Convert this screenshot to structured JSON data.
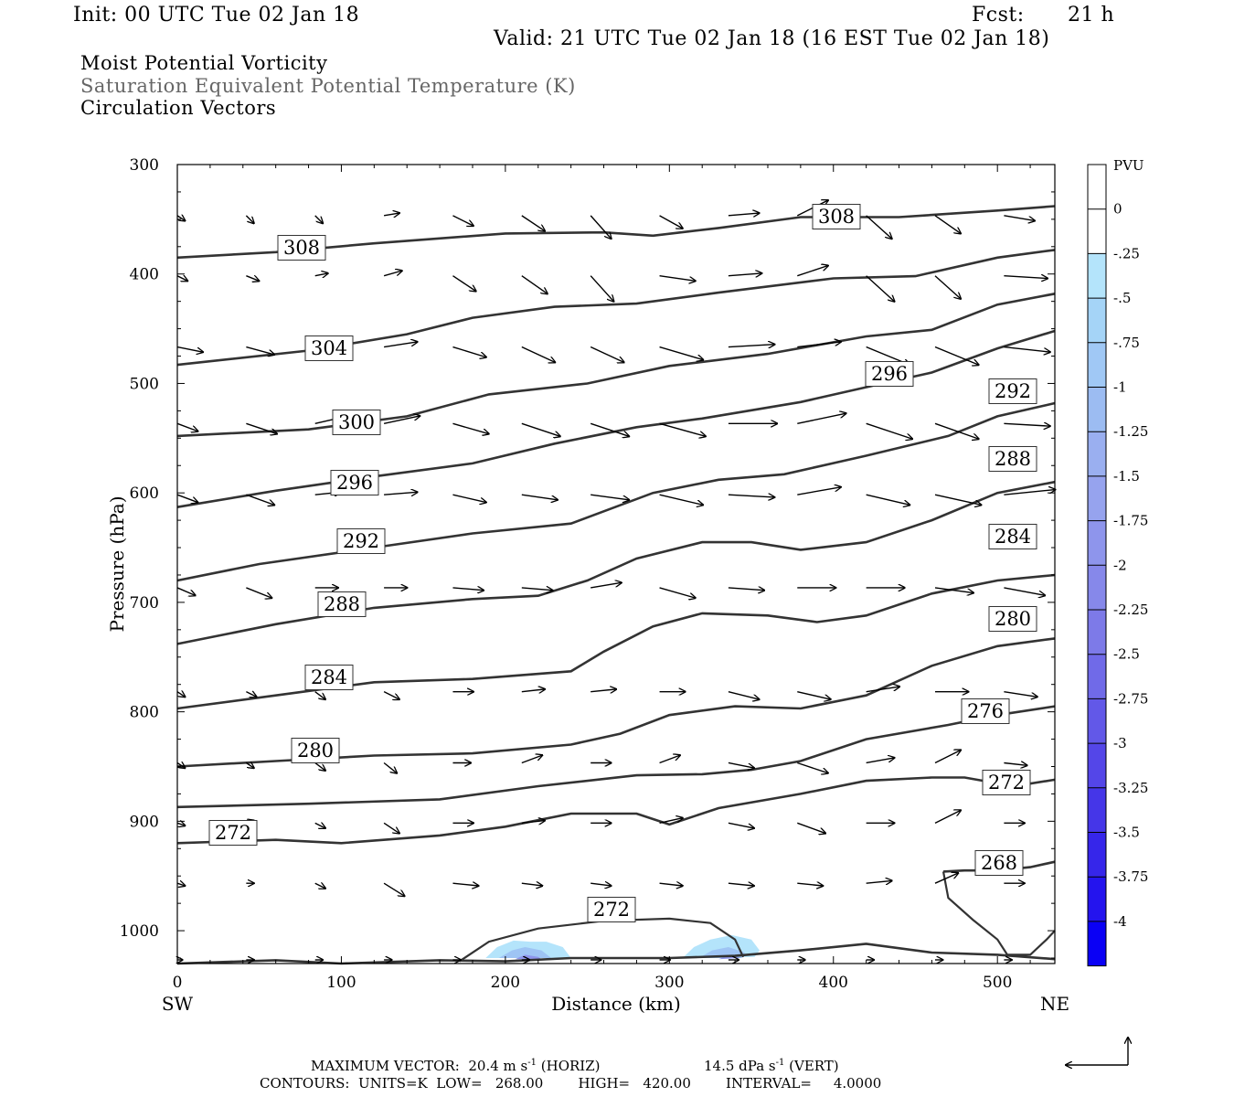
{
  "header": {
    "init": "Init: 00 UTC Tue 02 Jan 18",
    "fcst_label": "Fcst:",
    "fcst_value": "21 h",
    "valid": "Valid: 21 UTC Tue 02 Jan 18 (16 EST Tue 02 Jan 18)"
  },
  "fields": {
    "line1": "Moist Potential Vorticity",
    "line2": "Saturation Equivalent Potential Temperature (K)",
    "line3": "Circulation Vectors"
  },
  "footer": {
    "max_vector_label": "MAXIMUM VECTOR:",
    "horiz_value": "20.4 m s",
    "horiz_unit": "-1",
    "horiz_tag": "(HORIZ)",
    "vert_value": "14.5 dPa s",
    "vert_unit": "-1",
    "vert_tag": "(VERT)",
    "contours": "CONTOURS:  UNITS=K  LOW=   268.00        HIGH=   420.00        INTERVAL=     4.0000"
  },
  "chart_data": {
    "type": "cross-section",
    "xlabel": "Distance (km)",
    "ylabel": "Pressure (hPa)",
    "xlim": [
      0,
      535
    ],
    "ylim": [
      300,
      1030
    ],
    "x_ticks": [
      0,
      100,
      200,
      300,
      400,
      500
    ],
    "y_ticks": [
      300,
      400,
      500,
      600,
      700,
      800,
      900,
      1000
    ],
    "x_end_labels": {
      "left": "SW",
      "right": "NE"
    },
    "colorbar": {
      "label": "PVU",
      "ticks": [
        "0",
        "-.25",
        "-.5",
        "-.75",
        "-1",
        "-1.25",
        "-1.5",
        "-1.75",
        "-2",
        "-2.25",
        "-2.5",
        "-2.75",
        "-3",
        "-3.25",
        "-3.5",
        "-3.75",
        "-4"
      ],
      "colors": [
        "#ffffff",
        "#ffffff",
        "#b4e4fb",
        "#a5d4f7",
        "#a0c8f5",
        "#9cbcf2",
        "#9aaff0",
        "#96a3ee",
        "#8e95ec",
        "#8688ea",
        "#7d7ae8",
        "#706ae8",
        "#6258e8",
        "#5446e8",
        "#4536e8",
        "#3626ea",
        "#2414ee",
        "#0a00f5"
      ]
    },
    "contour_labels": [
      "308",
      "304",
      "300",
      "296",
      "292",
      "288",
      "284",
      "280",
      "276",
      "272",
      "268"
    ],
    "contours": [
      {
        "label": "308",
        "points": [
          [
            0,
            385
          ],
          [
            60,
            380
          ],
          [
            120,
            372
          ],
          [
            200,
            363
          ],
          [
            260,
            362
          ],
          [
            290,
            365
          ],
          [
            330,
            358
          ],
          [
            380,
            348
          ],
          [
            440,
            348
          ],
          [
            500,
            342
          ],
          [
            535,
            338
          ]
        ]
      },
      {
        "label": "304",
        "points": [
          [
            0,
            483
          ],
          [
            80,
            470
          ],
          [
            140,
            455
          ],
          [
            180,
            440
          ],
          [
            230,
            430
          ],
          [
            280,
            427
          ],
          [
            330,
            417
          ],
          [
            400,
            404
          ],
          [
            450,
            402
          ],
          [
            500,
            385
          ],
          [
            535,
            378
          ]
        ]
      },
      {
        "label": "300",
        "points": [
          [
            0,
            548
          ],
          [
            80,
            542
          ],
          [
            140,
            530
          ],
          [
            190,
            510
          ],
          [
            250,
            500
          ],
          [
            300,
            484
          ],
          [
            360,
            473
          ],
          [
            420,
            457
          ],
          [
            460,
            451
          ],
          [
            500,
            428
          ],
          [
            535,
            418
          ]
        ]
      },
      {
        "label": "296",
        "points": [
          [
            0,
            613
          ],
          [
            60,
            598
          ],
          [
            120,
            585
          ],
          [
            180,
            573
          ],
          [
            230,
            555
          ],
          [
            280,
            540
          ],
          [
            320,
            532
          ],
          [
            380,
            517
          ],
          [
            430,
            500
          ],
          [
            460,
            490
          ],
          [
            500,
            468
          ],
          [
            535,
            452
          ]
        ]
      },
      {
        "label": "292",
        "points": [
          [
            0,
            680
          ],
          [
            50,
            665
          ],
          [
            120,
            650
          ],
          [
            180,
            637
          ],
          [
            240,
            628
          ],
          [
            290,
            600
          ],
          [
            330,
            588
          ],
          [
            370,
            583
          ],
          [
            420,
            566
          ],
          [
            470,
            548
          ],
          [
            500,
            530
          ],
          [
            535,
            518
          ]
        ]
      },
      {
        "label": "288",
        "points": [
          [
            0,
            738
          ],
          [
            60,
            720
          ],
          [
            120,
            705
          ],
          [
            180,
            697
          ],
          [
            220,
            694
          ],
          [
            250,
            680
          ],
          [
            280,
            660
          ],
          [
            320,
            645
          ],
          [
            350,
            645
          ],
          [
            380,
            652
          ],
          [
            420,
            645
          ],
          [
            460,
            625
          ],
          [
            500,
            600
          ],
          [
            535,
            590
          ]
        ]
      },
      {
        "label": "284",
        "points": [
          [
            0,
            797
          ],
          [
            60,
            785
          ],
          [
            120,
            773
          ],
          [
            180,
            770
          ],
          [
            240,
            763
          ],
          [
            260,
            745
          ],
          [
            290,
            722
          ],
          [
            320,
            710
          ],
          [
            360,
            712
          ],
          [
            390,
            718
          ],
          [
            420,
            712
          ],
          [
            460,
            692
          ],
          [
            500,
            680
          ],
          [
            535,
            675
          ]
        ]
      },
      {
        "label": "280",
        "points": [
          [
            0,
            850
          ],
          [
            60,
            845
          ],
          [
            120,
            840
          ],
          [
            180,
            838
          ],
          [
            240,
            830
          ],
          [
            270,
            820
          ],
          [
            300,
            803
          ],
          [
            340,
            795
          ],
          [
            380,
            797
          ],
          [
            420,
            785
          ],
          [
            460,
            758
          ],
          [
            500,
            740
          ],
          [
            535,
            733
          ]
        ]
      },
      {
        "label": "276",
        "points": [
          [
            0,
            887
          ],
          [
            80,
            884
          ],
          [
            160,
            880
          ],
          [
            220,
            868
          ],
          [
            280,
            858
          ],
          [
            320,
            857
          ],
          [
            350,
            853
          ],
          [
            380,
            845
          ],
          [
            420,
            825
          ],
          [
            470,
            812
          ],
          [
            500,
            803
          ],
          [
            535,
            795
          ]
        ]
      },
      {
        "label": "272",
        "points": [
          [
            0,
            920
          ],
          [
            60,
            917
          ],
          [
            100,
            920
          ],
          [
            160,
            913
          ],
          [
            200,
            905
          ],
          [
            240,
            893
          ],
          [
            280,
            893
          ],
          [
            300,
            903
          ],
          [
            330,
            888
          ],
          [
            380,
            875
          ],
          [
            420,
            863
          ],
          [
            460,
            860
          ],
          [
            480,
            860
          ],
          [
            510,
            868
          ],
          [
            535,
            862
          ]
        ]
      },
      {
        "label": "268",
        "points": [
          [
            467,
            946
          ],
          [
            480,
            945
          ],
          [
            500,
            945
          ],
          [
            520,
            942
          ],
          [
            535,
            937
          ]
        ]
      },
      {
        "label": "surface",
        "points": [
          [
            0,
            1030
          ],
          [
            60,
            1027
          ],
          [
            100,
            1030
          ],
          [
            160,
            1027
          ],
          [
            200,
            1028
          ],
          [
            240,
            1025
          ],
          [
            300,
            1025
          ],
          [
            340,
            1023
          ],
          [
            380,
            1018
          ],
          [
            420,
            1012
          ],
          [
            460,
            1020
          ],
          [
            500,
            1022
          ],
          [
            535,
            1026
          ]
        ]
      }
    ],
    "closed_contours": [
      {
        "label": "272",
        "points": [
          [
            172,
            1028
          ],
          [
            190,
            1010
          ],
          [
            220,
            998
          ],
          [
            260,
            991
          ],
          [
            300,
            989
          ],
          [
            325,
            993
          ],
          [
            340,
            1008
          ],
          [
            345,
            1024
          ]
        ]
      },
      {
        "label": "268",
        "points": [
          [
            467,
            946
          ],
          [
            470,
            970
          ],
          [
            485,
            990
          ],
          [
            500,
            1008
          ],
          [
            506,
            1022
          ],
          [
            520,
            1022
          ],
          [
            530,
            1008
          ],
          [
            535,
            1000
          ]
        ]
      }
    ],
    "shading": [
      {
        "points": [
          [
            188,
            1025
          ],
          [
            195,
            1015
          ],
          [
            205,
            1009
          ],
          [
            215,
            1010
          ],
          [
            225,
            1010
          ],
          [
            235,
            1015
          ],
          [
            240,
            1025
          ]
        ],
        "color": "#b4e4fb"
      },
      {
        "points": [
          [
            196,
            1025
          ],
          [
            204,
            1018
          ],
          [
            212,
            1015
          ],
          [
            222,
            1018
          ],
          [
            228,
            1025
          ]
        ],
        "color": "#9ec4f4"
      },
      {
        "points": [
          [
            206,
            1026
          ],
          [
            212,
            1022
          ],
          [
            220,
            1024
          ],
          [
            222,
            1026
          ]
        ],
        "color": "#8e95ec"
      },
      {
        "points": [
          [
            308,
            1025
          ],
          [
            315,
            1015
          ],
          [
            325,
            1008
          ],
          [
            338,
            1004
          ],
          [
            350,
            1008
          ],
          [
            355,
            1018
          ],
          [
            352,
            1024
          ]
        ],
        "color": "#b4e4fb"
      },
      {
        "points": [
          [
            318,
            1025
          ],
          [
            326,
            1018
          ],
          [
            336,
            1015
          ],
          [
            346,
            1020
          ],
          [
            344,
            1025
          ]
        ],
        "color": "#9ec4f4"
      },
      {
        "points": [
          [
            330,
            1026
          ],
          [
            337,
            1022
          ],
          [
            343,
            1025
          ]
        ],
        "color": "#8e95ec"
      }
    ],
    "vectors": {
      "x": [
        0,
        42,
        84,
        126,
        168,
        210,
        252,
        294,
        336,
        378,
        420,
        462,
        504
      ],
      "p": [
        350,
        405,
        470,
        540,
        605,
        690,
        785,
        850,
        905,
        960,
        1030
      ],
      "u": [
        [
          0.3,
          0.3,
          0.3,
          0.6,
          0.8,
          0.9,
          0.8,
          0.9,
          1.2,
          1.2,
          1.0,
          1.0,
          1.2
        ],
        [
          0.4,
          0.5,
          0.5,
          0.7,
          0.9,
          1.0,
          0.9,
          1.4,
          1.3,
          1.2,
          1.1,
          1.0,
          1.7
        ],
        [
          1.0,
          1.1,
          1.2,
          1.3,
          1.3,
          1.3,
          1.3,
          1.7,
          1.8,
          1.7,
          1.7,
          1.7,
          1.8
        ],
        [
          0.8,
          1.2,
          1.3,
          1.4,
          1.4,
          1.5,
          1.5,
          1.8,
          1.9,
          1.9,
          1.8,
          1.7,
          1.8
        ],
        [
          0.8,
          1.1,
          1.0,
          1.3,
          1.3,
          1.4,
          1.5,
          1.7,
          1.8,
          1.7,
          1.7,
          1.8,
          2.0
        ],
        [
          0.7,
          1.0,
          0.9,
          0.9,
          1.2,
          1.2,
          1.2,
          1.4,
          1.4,
          1.5,
          1.5,
          1.5,
          1.6
        ],
        [
          0.3,
          0.4,
          0.4,
          0.6,
          0.8,
          0.9,
          1.0,
          1.0,
          1.2,
          1.3,
          1.3,
          1.3,
          1.3
        ],
        [
          0.3,
          0.3,
          0.4,
          0.5,
          0.7,
          0.8,
          0.8,
          0.8,
          1.0,
          1.2,
          1.1,
          1.0,
          0.9
        ],
        [
          0.3,
          0.3,
          0.4,
          0.6,
          0.8,
          0.9,
          0.8,
          0.9,
          1.0,
          1.1,
          1.1,
          1.0,
          0.8
        ],
        [
          0.3,
          0.3,
          0.4,
          0.8,
          1.0,
          0.8,
          0.8,
          0.9,
          1.0,
          1.0,
          1.0,
          0.9,
          0.8
        ],
        [
          0.2,
          0.3,
          0.3,
          0.3,
          0.3,
          0.3,
          0.4,
          0.4,
          0.4,
          0.3,
          0.3,
          0.3,
          0.3
        ]
      ],
      "w": [
        [
          0.2,
          0.3,
          0.3,
          -0.1,
          0.4,
          0.6,
          0.9,
          0.5,
          -0.1,
          -0.6,
          0.9,
          0.7,
          0.2
        ],
        [
          0.2,
          0.2,
          -0.1,
          -0.2,
          0.6,
          0.7,
          1.0,
          0.2,
          -0.1,
          -0.4,
          1.0,
          0.9,
          0.1
        ],
        [
          0.2,
          0.3,
          -0.2,
          -0.2,
          0.4,
          0.6,
          0.6,
          0.5,
          -0.1,
          -0.2,
          0.7,
          0.7,
          0.2
        ],
        [
          0.3,
          0.4,
          -0.3,
          -0.3,
          0.4,
          0.5,
          0.5,
          0.5,
          0.0,
          -0.4,
          0.6,
          0.6,
          0.1
        ],
        [
          0.3,
          0.4,
          -0.1,
          -0.1,
          0.3,
          0.2,
          0.2,
          0.4,
          0.1,
          -0.3,
          0.4,
          0.4,
          -0.2
        ],
        [
          0.3,
          0.4,
          0.0,
          0.0,
          0.1,
          0.1,
          -0.2,
          0.4,
          0.1,
          0.0,
          0.0,
          0.2,
          0.3
        ],
        [
          0.2,
          0.2,
          0.3,
          0.3,
          0.0,
          -0.1,
          -0.1,
          0.0,
          0.3,
          0.3,
          -0.2,
          0.0,
          0.2
        ],
        [
          0.2,
          0.2,
          0.3,
          0.4,
          0.0,
          -0.3,
          0.0,
          -0.3,
          0.2,
          0.4,
          -0.2,
          -0.5,
          0.1
        ],
        [
          0.1,
          -0.1,
          0.2,
          0.4,
          0.0,
          -0.1,
          0.0,
          -0.2,
          0.2,
          0.4,
          0.0,
          -0.5,
          0.0
        ],
        [
          0.1,
          0.0,
          0.2,
          0.5,
          0.1,
          0.1,
          0.1,
          0.1,
          0.1,
          0.1,
          -0.1,
          -0.4,
          0.0
        ],
        [
          0.0,
          0.0,
          0.0,
          0.0,
          0.0,
          0.0,
          0.0,
          0.0,
          0.0,
          0.0,
          0.0,
          0.0,
          0.0
        ]
      ]
    }
  }
}
